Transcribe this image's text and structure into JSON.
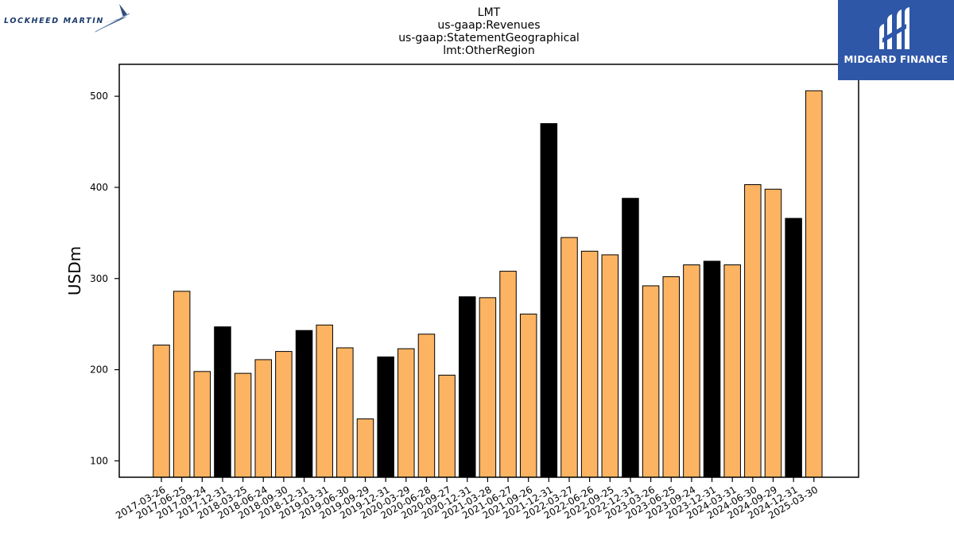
{
  "logos": {
    "left_text": "LOCKHEED MARTIN",
    "right_text": "MIDGARD FINANCE",
    "right_bg": "#2f57a8"
  },
  "chart_data": {
    "type": "bar",
    "title_lines": [
      "LMT",
      "us-gaap:Revenues",
      "us-gaap:StatementGeographical",
      "lmt:OtherRegion"
    ],
    "ylabel": "USDm",
    "xlabel": "",
    "ylim": [
      82,
      535
    ],
    "yticks": [
      100,
      200,
      300,
      400,
      500
    ],
    "grid": false,
    "colors": {
      "quarter": "#fdb462",
      "annual": "#000000",
      "edge": "#000000"
    },
    "categories": [
      "2017-03-26",
      "2017-06-25",
      "2017-09-24",
      "2017-12-31",
      "2018-03-25",
      "2018-06-24",
      "2018-09-30",
      "2018-12-31",
      "2019-03-31",
      "2019-06-30",
      "2019-09-29",
      "2019-12-31",
      "2020-03-29",
      "2020-06-28",
      "2020-09-27",
      "2020-12-31",
      "2021-03-28",
      "2021-06-27",
      "2021-09-26",
      "2021-12-31",
      "2022-03-27",
      "2022-06-26",
      "2022-09-25",
      "2022-12-31",
      "2023-03-26",
      "2023-06-25",
      "2023-09-24",
      "2023-12-31",
      "2024-03-31",
      "2024-06-30",
      "2024-09-29",
      "2024-12-31",
      "2025-03-30"
    ],
    "values": [
      227,
      286,
      198,
      247,
      196,
      211,
      220,
      243,
      249,
      224,
      146,
      214,
      223,
      239,
      194,
      280,
      279,
      308,
      261,
      470,
      345,
      330,
      326,
      388,
      292,
      302,
      315,
      319,
      315,
      403,
      398,
      366,
      506
    ],
    "highlight": [
      false,
      false,
      false,
      true,
      false,
      false,
      false,
      true,
      false,
      false,
      false,
      true,
      false,
      false,
      false,
      true,
      false,
      false,
      false,
      true,
      false,
      false,
      false,
      true,
      false,
      false,
      false,
      true,
      false,
      false,
      false,
      true,
      false
    ]
  }
}
